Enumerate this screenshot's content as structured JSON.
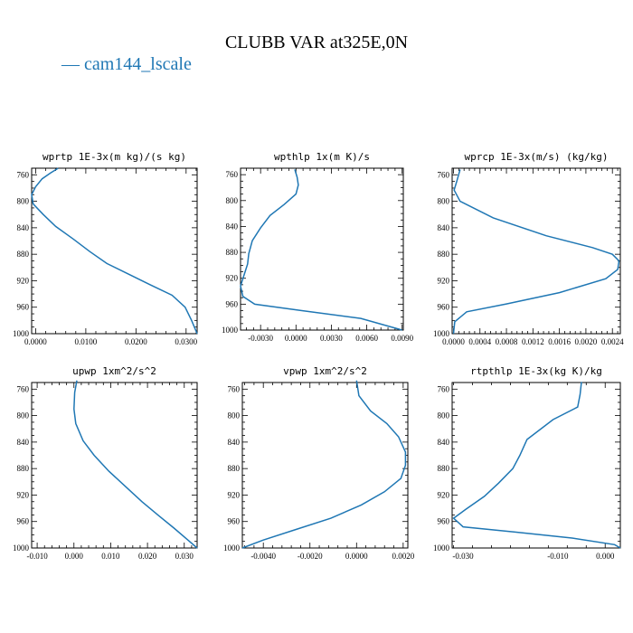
{
  "title": "CLUBB VAR at325E,0N",
  "legend": {
    "marker": "—",
    "label": "cam144_lscale",
    "color": "#1f77b4"
  },
  "chart_data": [
    {
      "type": "line",
      "title": "wprtp  1E-3x(m kg)/(s kg)",
      "xlim": [
        -0.0008,
        0.0322
      ],
      "xticks": [
        0.0,
        0.01,
        0.02,
        0.03
      ],
      "xticklabels": [
        "0.0000",
        "0.0100",
        "0.0200",
        "0.0300"
      ],
      "ylim": [
        1000,
        750
      ],
      "yticks": [
        760,
        800,
        840,
        880,
        920,
        960,
        1000
      ],
      "series": [
        {
          "x": [
            0.0045,
            0.003,
            0.0013,
            0.0,
            -0.0008,
            -0.0005,
            0.0015,
            0.004,
            0.0075,
            0.0108,
            0.0142,
            0.0185,
            0.0228,
            0.0272,
            0.0298,
            0.0311,
            0.0322
          ],
          "y": [
            750,
            757,
            766,
            778,
            790,
            804,
            820,
            838,
            857,
            876,
            894,
            910,
            926,
            942,
            960,
            980,
            1000
          ]
        }
      ]
    },
    {
      "type": "line",
      "title": "wpthlp  1x(m K)/s",
      "xlim": [
        -0.0047,
        0.0091
      ],
      "xticks": [
        -0.003,
        0.0,
        0.003,
        0.006,
        0.009
      ],
      "xticklabels": [
        "-0.0030",
        "0.0000",
        "0.0030",
        "0.0060",
        "0.0090"
      ],
      "ylim": [
        1000,
        750
      ],
      "yticks": [
        760,
        800,
        840,
        880,
        920,
        960,
        1000
      ],
      "series": [
        {
          "x": [
            -0.0001,
            0.0001,
            0.0002,
            0.0,
            -0.001,
            -0.0022,
            -0.003,
            -0.0037,
            -0.004,
            -0.0041,
            -0.0044,
            -0.0047,
            -0.0045,
            -0.0035,
            0.0005,
            0.0055,
            0.009
          ],
          "y": [
            752,
            764,
            776,
            790,
            806,
            823,
            842,
            862,
            882,
            898,
            915,
            932,
            948,
            960,
            970,
            982,
            1000
          ]
        }
      ]
    },
    {
      "type": "line",
      "title": "wprcp  1E-3x(m/s) (kg/kg)",
      "xlim": [
        -2e-05,
        0.00252
      ],
      "xticks": [
        0.0,
        0.0004,
        0.0008,
        0.0012,
        0.0016,
        0.002,
        0.0024
      ],
      "xticklabels": [
        "0.0000",
        "0.0004",
        "0.0008",
        "0.0012",
        "0.0016",
        "0.0020",
        "0.0024"
      ],
      "ylim": [
        1000,
        750
      ],
      "yticks": [
        760,
        800,
        840,
        880,
        920,
        960,
        1000
      ],
      "series": [
        {
          "x": [
            0.0001,
            5e-05,
            1e-05,
            0.0001,
            0.0006,
            0.0014,
            0.0021,
            0.0024,
            0.0025,
            0.00248,
            0.0023,
            0.0016,
            0.0008,
            0.0002,
            2e-05,
            0.0
          ],
          "y": [
            752,
            770,
            783,
            800,
            825,
            852,
            870,
            880,
            890,
            903,
            917,
            938,
            955,
            967,
            982,
            1000
          ]
        }
      ]
    },
    {
      "type": "line",
      "title": "upwp  1xm^2/s^2",
      "xlim": [
        -0.0115,
        0.0335
      ],
      "xticks": [
        -0.01,
        0.0,
        0.01,
        0.02,
        0.03
      ],
      "xticklabels": [
        "-0.010",
        "0.000",
        "0.010",
        "0.020",
        "0.030"
      ],
      "ylim": [
        1000,
        750
      ],
      "yticks": [
        760,
        800,
        840,
        880,
        920,
        960,
        1000
      ],
      "series": [
        {
          "x": [
            0.0008,
            0.0002,
            0.0,
            0.0005,
            0.0025,
            0.0055,
            0.0095,
            0.014,
            0.0185,
            0.023,
            0.0272,
            0.031,
            0.0335
          ],
          "y": [
            747,
            765,
            790,
            812,
            838,
            860,
            884,
            907,
            930,
            951,
            970,
            988,
            1000
          ]
        }
      ]
    },
    {
      "type": "line",
      "title": "vpwp  1xm^2/s^2",
      "xlim": [
        -0.0049,
        0.0022
      ],
      "xticks": [
        -0.004,
        -0.002,
        0.0,
        0.002
      ],
      "xticklabels": [
        "-0.0040",
        "-0.0020",
        "0.0000",
        "0.0020"
      ],
      "ylim": [
        1000,
        750
      ],
      "yticks": [
        760,
        800,
        840,
        880,
        920,
        960,
        1000
      ],
      "series": [
        {
          "x": [
            0.0,
            0.0001,
            0.0006,
            0.0013,
            0.0018,
            0.0021,
            0.0021,
            0.0019,
            0.0012,
            0.0002,
            -0.0011,
            -0.0026,
            -0.004,
            -0.0049
          ],
          "y": [
            747,
            770,
            793,
            812,
            832,
            855,
            875,
            895,
            915,
            935,
            955,
            972,
            988,
            1000
          ]
        }
      ]
    },
    {
      "type": "line",
      "title": "rtpthlp  1E-3x(kg K)/kg",
      "xlim": [
        -0.0323,
        0.0032
      ],
      "xticks": [
        -0.03,
        -0.01,
        0.0
      ],
      "xticklabels": [
        "-0.030",
        "-0.010",
        "0.000"
      ],
      "ylim": [
        1000,
        750
      ],
      "yticks": [
        760,
        800,
        840,
        880,
        920,
        960,
        1000
      ],
      "series": [
        {
          "x": [
            -0.005,
            -0.0053,
            -0.0058,
            -0.011,
            -0.0165,
            -0.018,
            -0.0195,
            -0.0225,
            -0.0255,
            -0.0295,
            -0.032,
            -0.03,
            -0.019,
            -0.007,
            0.002,
            0.0032
          ],
          "y": [
            749,
            768,
            787,
            806,
            836,
            860,
            880,
            902,
            922,
            942,
            955,
            968,
            976,
            985,
            995,
            1000
          ]
        }
      ]
    }
  ]
}
